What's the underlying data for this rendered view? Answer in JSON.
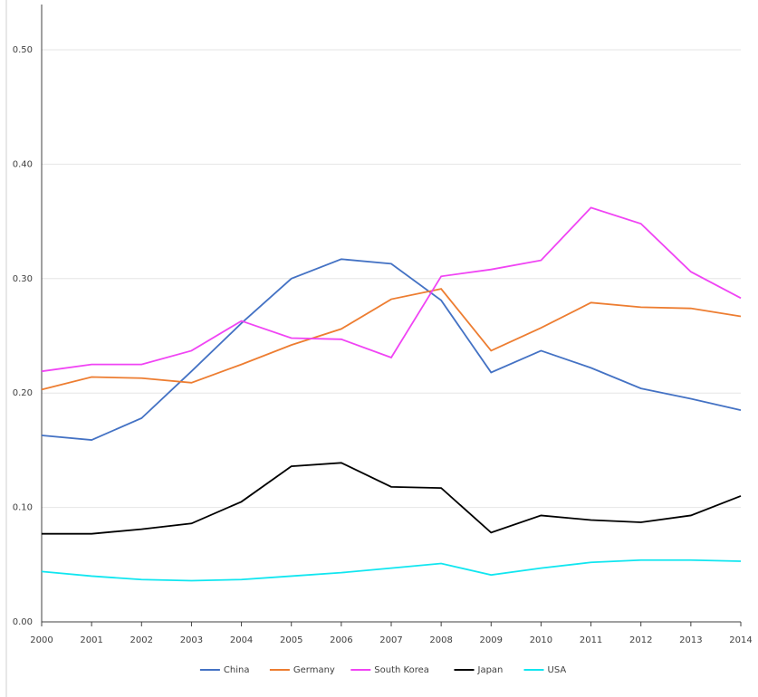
{
  "chart_data": {
    "type": "line",
    "x": [
      2000,
      2001,
      2002,
      2003,
      2004,
      2005,
      2006,
      2007,
      2008,
      2009,
      2010,
      2011,
      2012,
      2013,
      2014
    ],
    "xlim": [
      2000,
      2014
    ],
    "xticks": [
      2000,
      2001,
      2002,
      2003,
      2004,
      2005,
      2006,
      2007,
      2008,
      2009,
      2010,
      2011,
      2012,
      2013,
      2014
    ],
    "ylim": [
      0,
      0.5
    ],
    "yticks": [
      {
        "value": 0,
        "label": "0.00"
      },
      {
        "value": 0.1,
        "label": "0.10"
      },
      {
        "value": 0.2,
        "label": "0.20"
      },
      {
        "value": 0.3,
        "label": "0.30"
      },
      {
        "value": 0.4,
        "label": "0.40"
      },
      {
        "value": 0.5,
        "label": "0.50"
      }
    ],
    "grid": true,
    "legend": "bottom",
    "series": [
      {
        "name": "China",
        "color": "#4472c4",
        "values": [
          0.163,
          0.159,
          0.178,
          0.219,
          0.261,
          0.3,
          0.317,
          0.313,
          0.281,
          0.218,
          0.237,
          0.222,
          0.204,
          0.195,
          0.185
        ]
      },
      {
        "name": "Germany",
        "color": "#ed7d31",
        "values": [
          0.203,
          0.214,
          0.213,
          0.209,
          0.225,
          0.242,
          0.256,
          0.282,
          0.291,
          0.237,
          0.257,
          0.279,
          0.275,
          0.274,
          0.267
        ]
      },
      {
        "name": "South Korea",
        "color": "#f044f4",
        "values": [
          0.219,
          0.225,
          0.225,
          0.237,
          0.263,
          0.248,
          0.247,
          0.231,
          0.302,
          0.308,
          0.316,
          0.362,
          0.348,
          0.306,
          0.283
        ]
      },
      {
        "name": "Japan",
        "color": "#000000",
        "values": [
          0.077,
          0.077,
          0.081,
          0.086,
          0.105,
          0.136,
          0.139,
          0.118,
          0.117,
          0.078,
          0.093,
          0.089,
          0.087,
          0.093,
          0.11
        ]
      },
      {
        "name": "USA",
        "color": "#11e6f0",
        "values": [
          0.044,
          0.04,
          0.037,
          0.036,
          0.037,
          0.04,
          0.043,
          0.047,
          0.051,
          0.041,
          0.047,
          0.052,
          0.054,
          0.054,
          0.053
        ]
      }
    ]
  }
}
